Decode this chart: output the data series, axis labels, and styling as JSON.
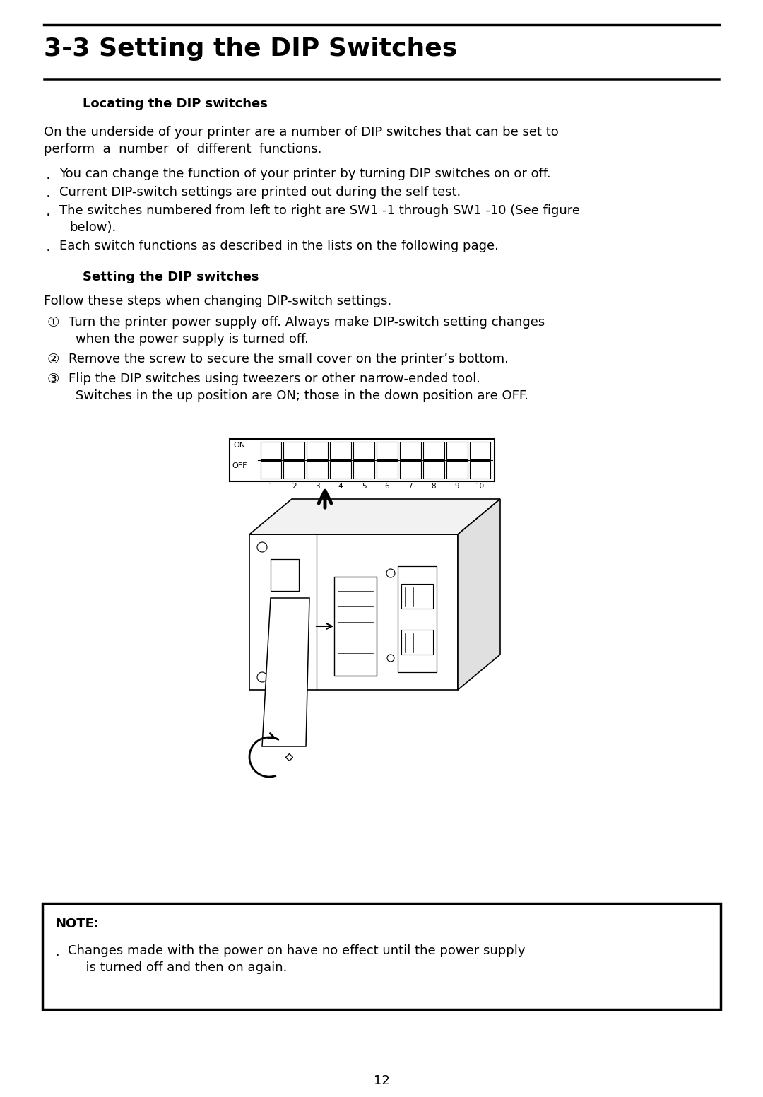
{
  "title": "3-3 Setting the DIP Switches",
  "section1_heading": "Locating the DIP switches",
  "body1_line1": "On the underside of your printer are a number of DIP switches that can be set to",
  "body1_line2": "perform  a  number  of  different  functions.",
  "bullets": [
    "You can change the function of your printer by turning DIP switches on or off.",
    "Current DIP-switch settings are printed out during the self test.",
    "The switches numbered from left to right are SW1 -1 through SW1 -10 (See figure",
    "   below).",
    "Each switch functions as described in the lists on the following page."
  ],
  "bullet_continues": [
    2
  ],
  "section2_heading": "Setting the DIP switches",
  "body2": "Follow these steps when changing DIP-switch settings.",
  "step1_line1": "Turn the printer power supply off. Always make DIP-switch setting changes",
  "step1_line2": "   when the power supply is turned off.",
  "step2": "Remove the screw to secure the small cover on the printer’s bottom.",
  "step3_line1": "Flip the DIP switches using tweezers or other narrow-ended tool.",
  "step3_line2": "   Switches in the up position are ON; those in the down position are OFF.",
  "note_heading": "NOTE:",
  "note_line1": "Changes made with the power on have no effect until the power supply",
  "note_line2": "  is turned off and then on again.",
  "page_number": "12",
  "bg_color": "#ffffff",
  "text_color": "#000000",
  "font_size_title": 26,
  "font_size_body": 13,
  "font_size_heading2": 13
}
